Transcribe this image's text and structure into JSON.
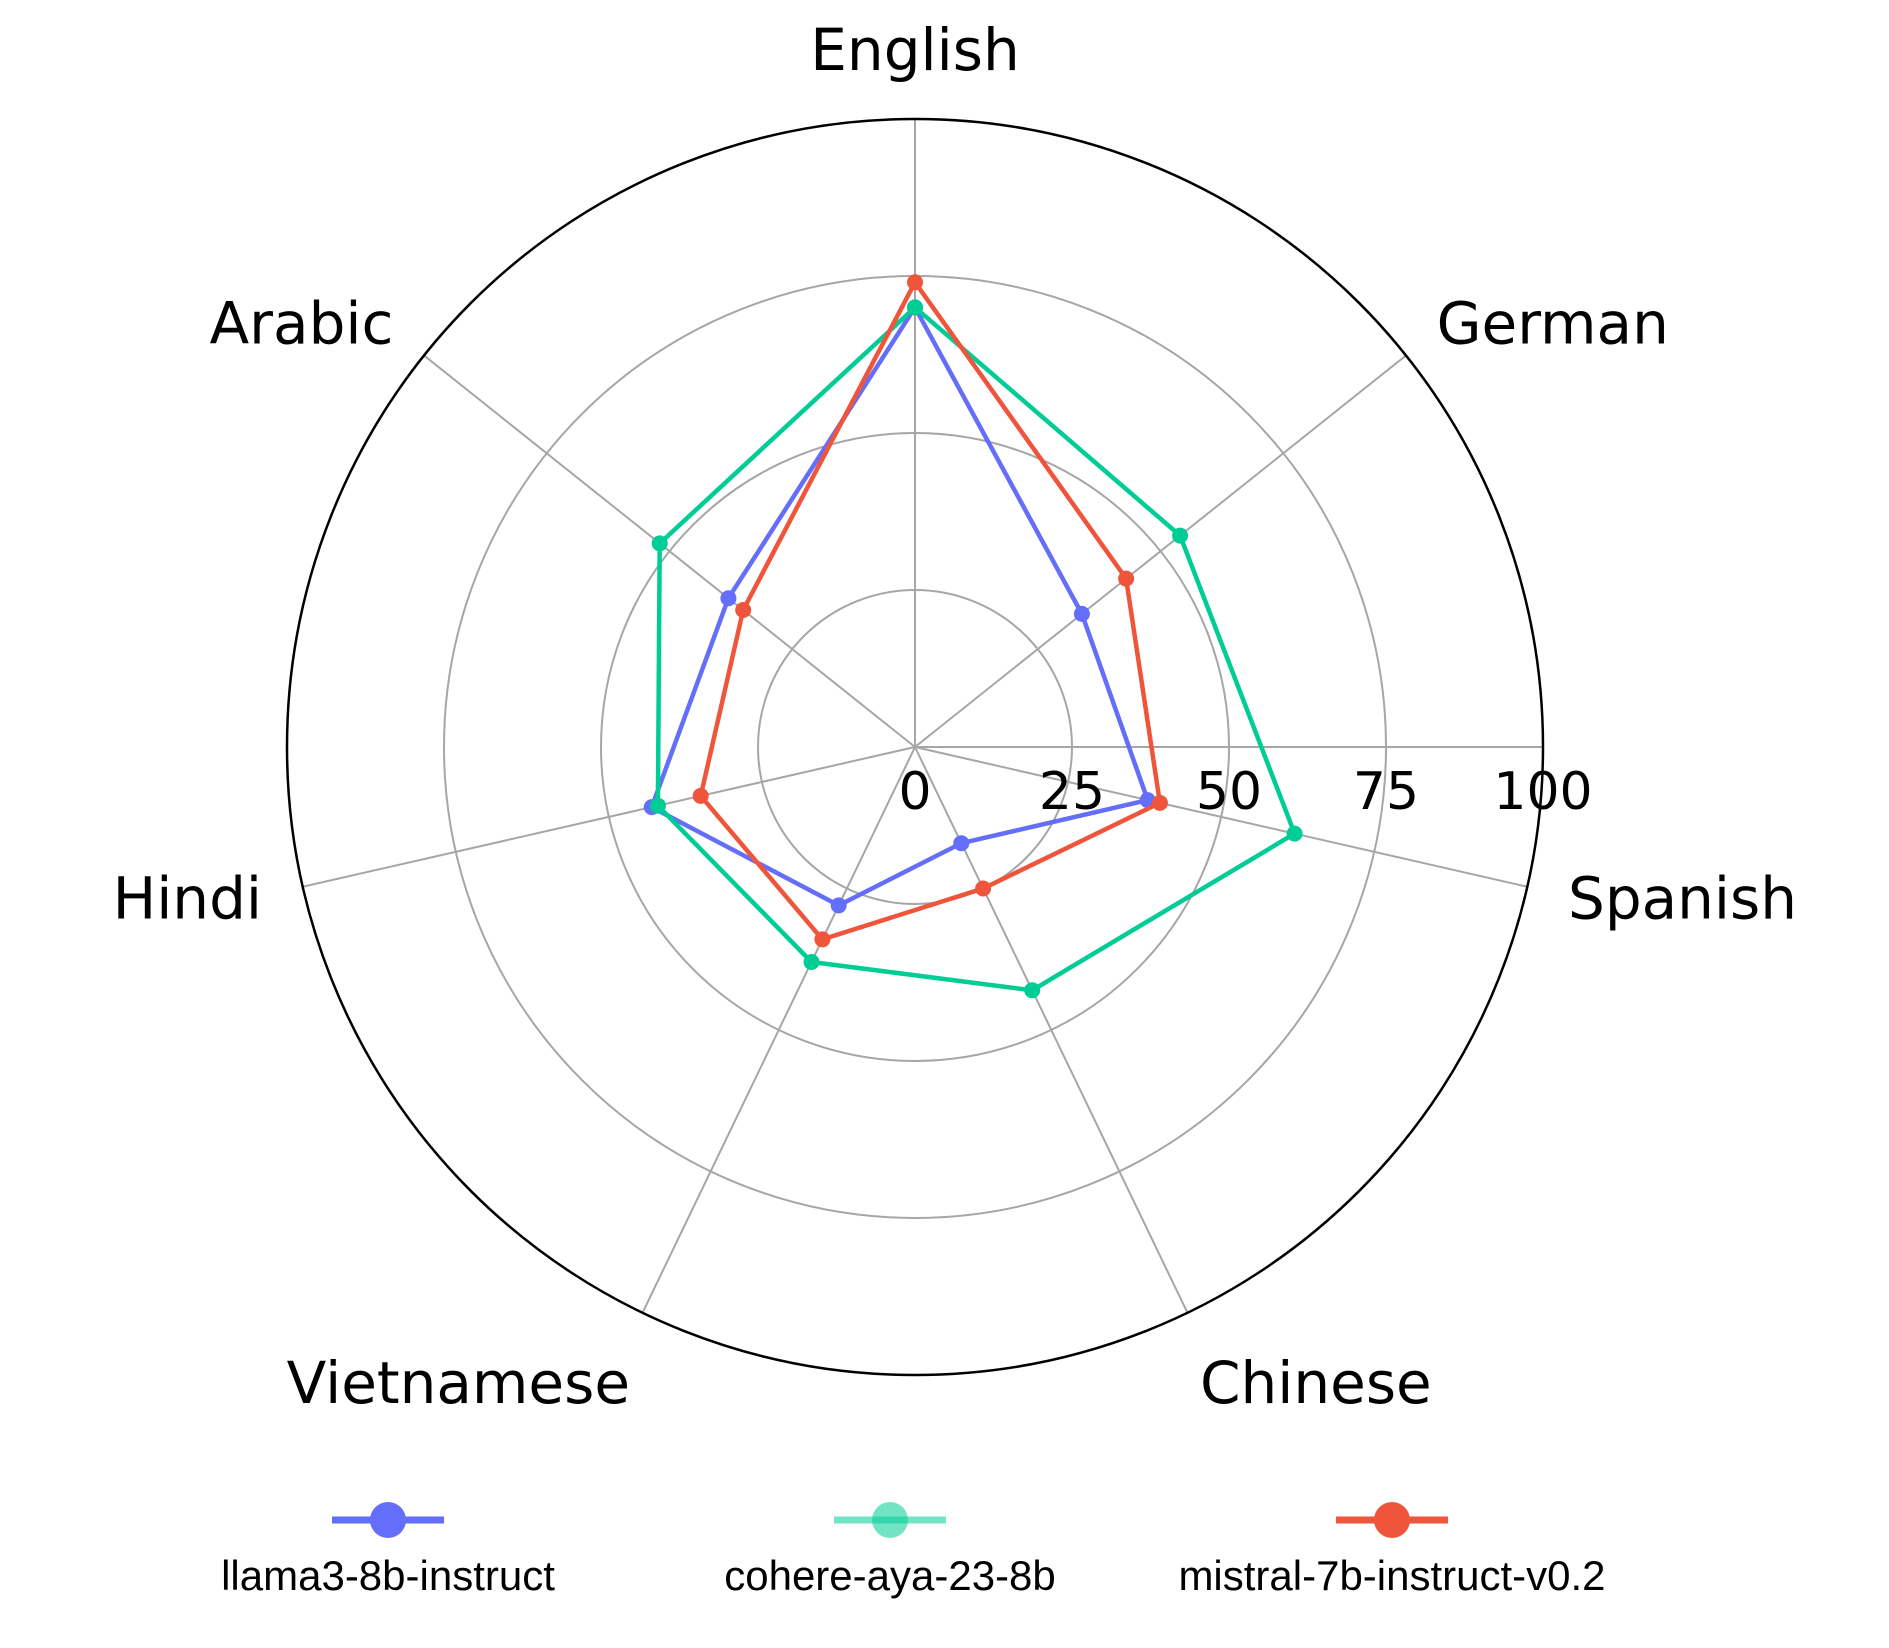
{
  "chart_data": {
    "type": "radar",
    "categories": [
      "English",
      "German",
      "Spanish",
      "Chinese",
      "Vietnamese",
      "Hindi",
      "Arabic"
    ],
    "radial_range": [
      0,
      100
    ],
    "radial_ticks": [
      "0",
      "25",
      "50",
      "75",
      "100"
    ],
    "grid": true,
    "legend_position": "bottom",
    "series": [
      {
        "name": "llama3-8b-instruct",
        "color": "#636efa",
        "values": [
          70,
          34,
          38,
          17,
          28,
          43,
          38
        ]
      },
      {
        "name": "cohere-aya-23-8b",
        "color": "#00cc96",
        "values": [
          70,
          54,
          62,
          43,
          38,
          42,
          52
        ]
      },
      {
        "name": "mistral-7b-instruct-v0.2",
        "color": "#ef553b",
        "values": [
          74,
          43,
          40,
          25,
          34,
          35,
          35
        ]
      }
    ]
  }
}
